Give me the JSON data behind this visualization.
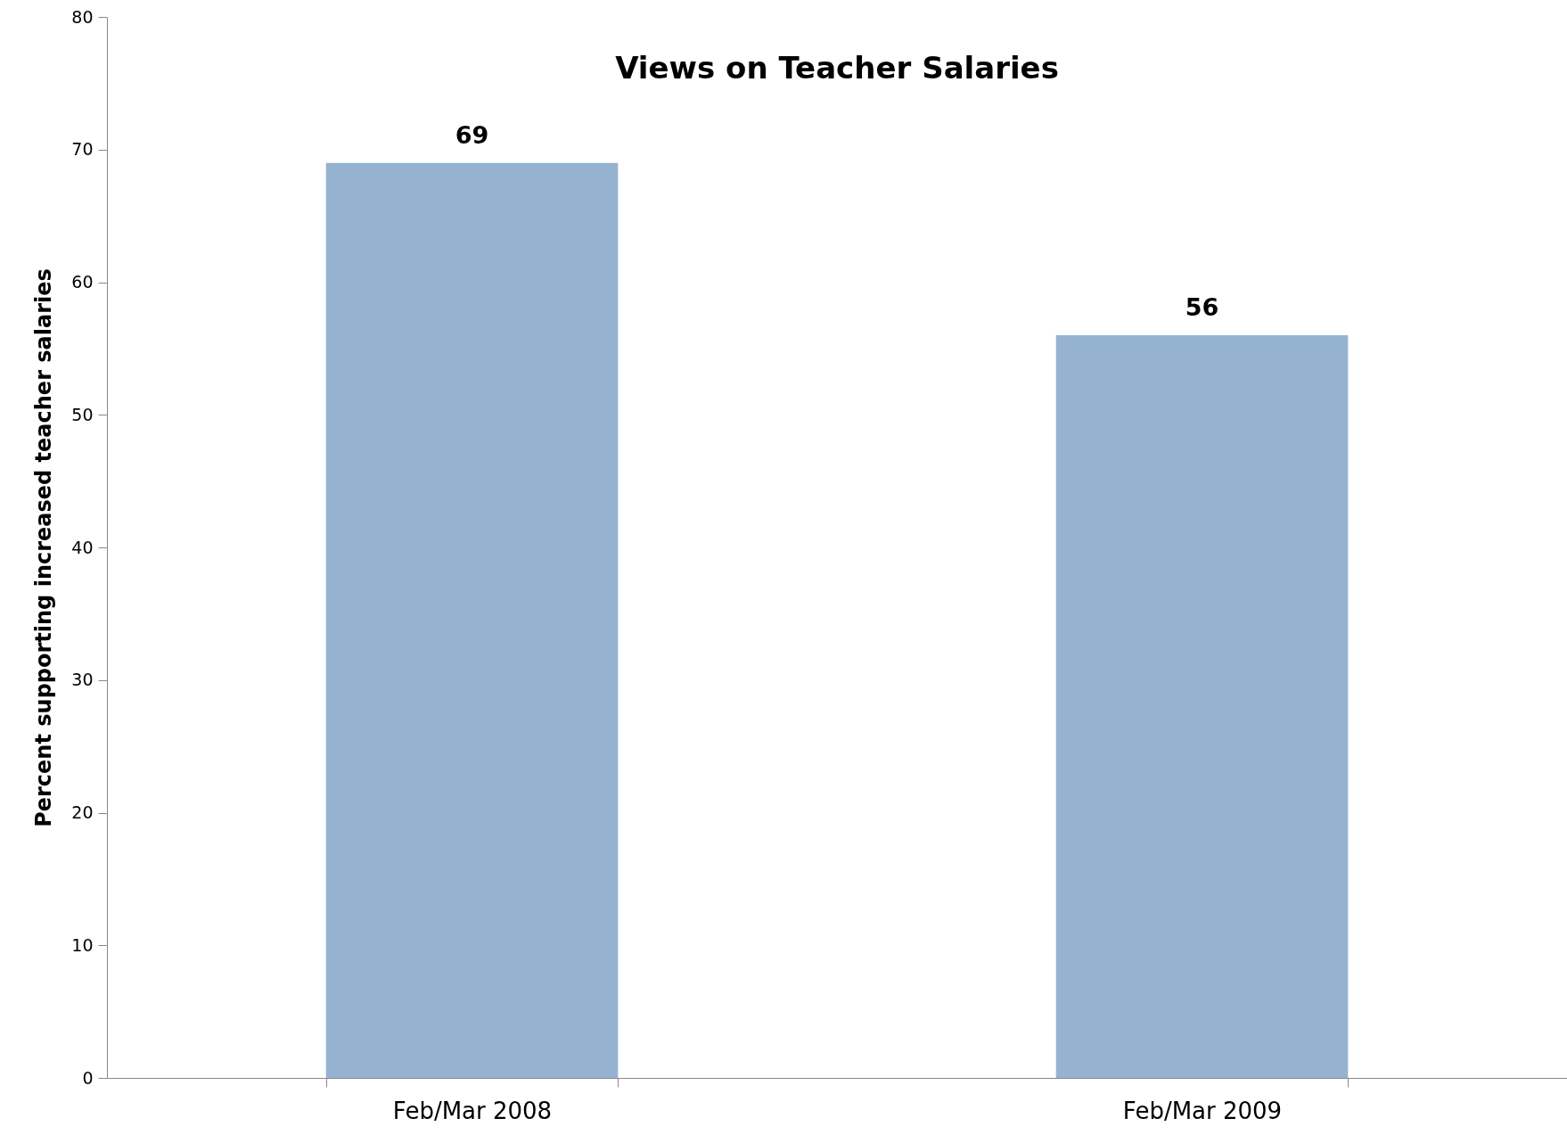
{
  "chart_data": {
    "type": "bar",
    "title": "Views on Teacher Salaries",
    "ylabel": "Percent supporting increased teacher salaries",
    "categories": [
      "Feb/Mar 2008",
      "Feb/Mar 2009"
    ],
    "values": [
      69,
      56
    ],
    "color": "#95b3d1",
    "ylim": [
      0,
      80
    ],
    "yticks": [
      0,
      10,
      20,
      30,
      40,
      50,
      60,
      70,
      80
    ],
    "grid": false,
    "data_labels": true
  }
}
